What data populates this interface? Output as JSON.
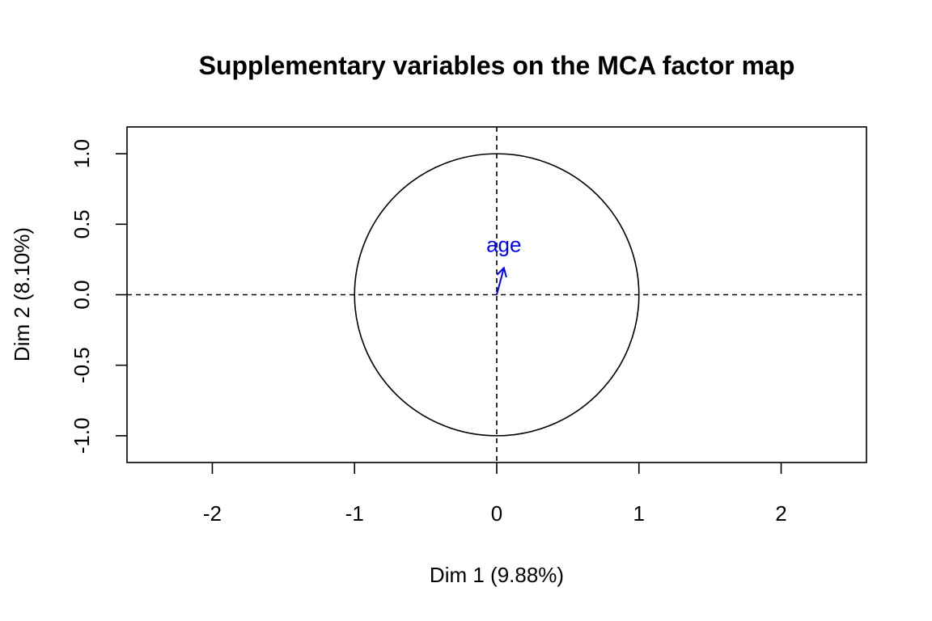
{
  "chart_data": {
    "type": "scatter",
    "title": "Supplementary variables on the MCA factor map",
    "xlabel": "Dim 1 (9.88%)",
    "ylabel": "Dim 2 (8.10%)",
    "xlim": [
      -2.6,
      2.6
    ],
    "ylim": [
      -1.19,
      1.19
    ],
    "x_ticks": [
      -2,
      -1,
      0,
      1,
      2
    ],
    "x_tick_labels": [
      "-2",
      "-1",
      "0",
      "1",
      "2"
    ],
    "y_ticks": [
      -1.0,
      -0.5,
      0.0,
      0.5,
      1.0
    ],
    "y_tick_labels": [
      "-1.0",
      "-0.5",
      "0.0",
      "0.5",
      "1.0"
    ],
    "grid": false,
    "unit_circle": true,
    "reference_lines": {
      "x": 0,
      "y": 0,
      "style": "dashed"
    },
    "variables": [
      {
        "name": "age",
        "x": 0.05,
        "y": 0.19,
        "color": "#0000FF"
      }
    ],
    "colors": {
      "axes": "#000000",
      "circle": "#000000",
      "variable": "#0000FF"
    }
  }
}
